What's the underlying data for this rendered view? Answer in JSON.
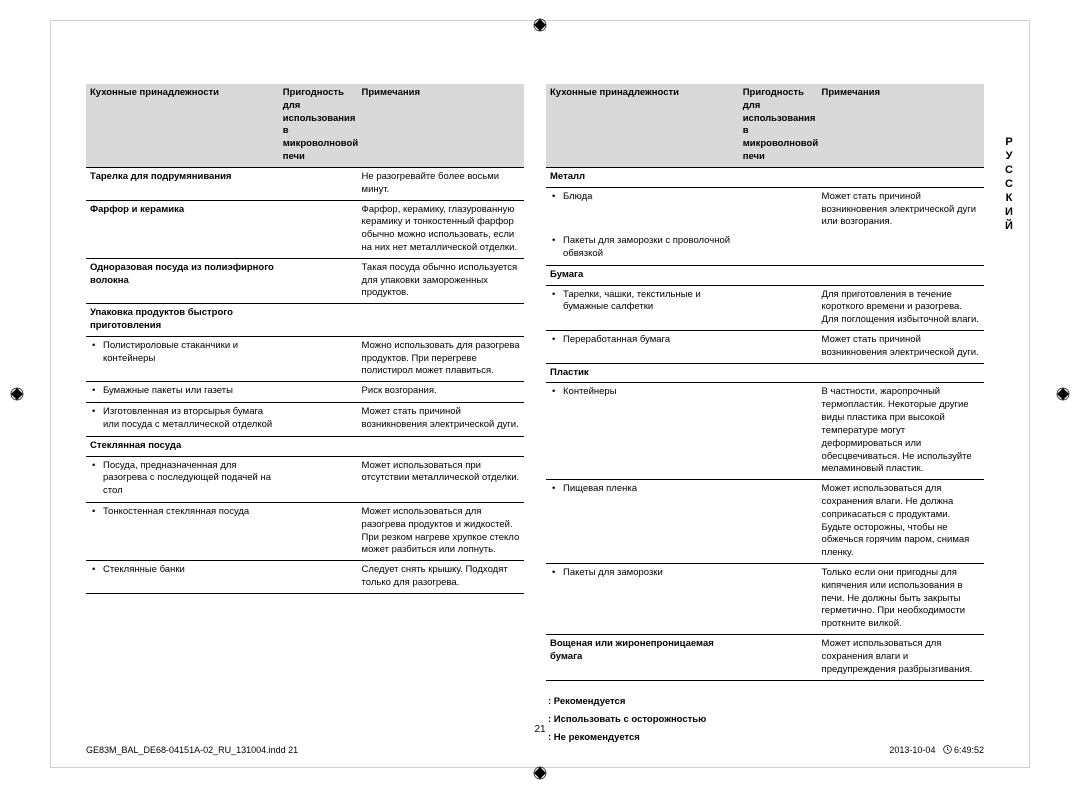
{
  "headers": {
    "c1": "Кухонные принадлежности",
    "c2": "Пригодность для использования в микроволновой печи",
    "c3": "Примечания"
  },
  "tableLeft": [
    {
      "c1_bold": true,
      "c1": "Тарелка для подрумянивания",
      "c3": "Не разогревайте более восьми минут."
    },
    {
      "c1_bold": true,
      "c1": "Фарфор и керамика",
      "c3": "Фарфор, керамику, глазурованную керамику и тонкостенный фарфор обычно можно использовать, если на них нет металлической отделки."
    },
    {
      "c1_bold": true,
      "c1": "Одноразовая посуда из полиэфирного волокна",
      "c3": "Такая посуда обычно используется для упаковки замороженных продуктов."
    },
    {
      "c1_bold": true,
      "c1": "Упаковка продуктов быстрого приготовления",
      "section": true
    },
    {
      "bullet": true,
      "c1": "Полистироловые стаканчики и контейнеры",
      "c3": "Можно использовать для разогрева продуктов. При перегреве полистирол может плавиться."
    },
    {
      "bullet": true,
      "c1": "Бумажные пакеты или газеты",
      "c3": "Риск возгорания."
    },
    {
      "bullet": true,
      "c1": "Изготовленная из вторсырья бумага или посуда с металлической отделкой",
      "c3": "Может стать причиной возникновения электрической дуги."
    },
    {
      "c1_bold": true,
      "c1": "Стеклянная посуда",
      "section": true
    },
    {
      "bullet": true,
      "c1": "Посуда, предназначенная для разогрева с последующей подачей на стол",
      "c3": "Может использоваться при отсутствии металлической отделки."
    },
    {
      "bullet": true,
      "c1": "Тонкостенная стеклянная посуда",
      "c3": "Может использоваться для разогрева продуктов и жидкостей. При резком нагреве хрупкое стекло может разбиться или лопнуть."
    },
    {
      "bullet": true,
      "c1": "Стеклянные банки",
      "c3": "Следует снять крышку. Подходят только для разогрева."
    }
  ],
  "tableRight": [
    {
      "c1_bold": true,
      "c1": "Металл",
      "section": true
    },
    {
      "bullet": true,
      "c1": "Блюда",
      "c3": "Может стать причиной возникновения электрической дуги или возгорания."
    },
    {
      "bullet": true,
      "c1": "Пакеты для заморозки с проволочной обвязкой",
      "c3": ""
    },
    {
      "c1_bold": true,
      "c1": "Бумага",
      "section": true
    },
    {
      "bullet": true,
      "c1": "Тарелки, чашки, текстильные и бумажные салфетки",
      "c3": "Для приготовления в течение короткого времени и разогрева. Для поглощения избыточной влаги."
    },
    {
      "bullet": true,
      "c1": "Переработанная бумага",
      "c3": "Может стать причиной возникновения электрической дуги."
    },
    {
      "c1_bold": true,
      "c1": "Пластик",
      "section": true
    },
    {
      "bullet": true,
      "c1": "Контейнеры",
      "c3": "В частности, жаропрочный термопластик. Некоторые другие виды пластика при высокой температуре могут деформироваться или обесцвечиваться. Не используйте меламиновый пластик."
    },
    {
      "bullet": true,
      "c1": "Пищевая пленка",
      "c3": "Может использоваться для сохранения влаги. Не должна соприкасаться с продуктами. Будьте осторожны, чтобы не обжечься горячим паром, снимая пленку."
    },
    {
      "bullet": true,
      "c1": "Пакеты для заморозки",
      "c3": "Только если они пригодны для кипячения или использования в печи. Не должны быть закрыты герметично. При необходимости проткните вилкой."
    },
    {
      "c1_bold": true,
      "c1": "Вощеная или жиронепроницаемая бумага",
      "c3": "Может использоваться для сохранения влаги и предупреждения разбрызгивания."
    }
  ],
  "legend": {
    "l1": ": Рекомендуется",
    "l2": ": Использовать с осторожностью",
    "l3": ": Не рекомендуется"
  },
  "sideLabel": "РУССКИЙ",
  "pageNum": "21",
  "footer": {
    "left": "GE83M_BAL_DE68-04151A-02_RU_131004.indd   21",
    "right_date": "2013-10-04",
    "right_time": "6:49:52"
  }
}
